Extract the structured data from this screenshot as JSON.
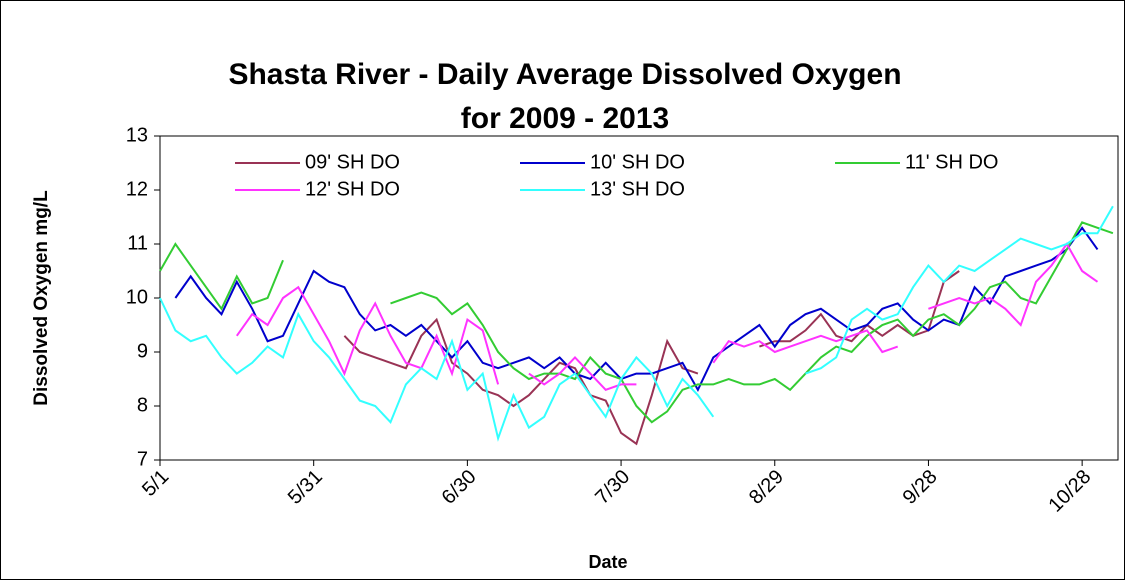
{
  "chart_data": {
    "type": "line",
    "title": [
      "Shasta River - Daily Average Dissolved Oxygen",
      "for 2009 - 2013"
    ],
    "x_label": "Date",
    "y_label": "Dissolved Oxygen mg/L",
    "x": [
      0,
      3,
      6,
      9,
      12,
      15,
      18,
      21,
      24,
      27,
      30,
      33,
      36,
      39,
      42,
      45,
      48,
      51,
      54,
      57,
      60,
      63,
      66,
      69,
      72,
      75,
      78,
      81,
      84,
      87,
      90,
      93,
      96,
      99,
      102,
      105,
      108,
      111,
      114,
      117,
      120,
      123,
      126,
      129,
      132,
      135,
      138,
      141,
      144,
      147,
      150,
      153,
      156,
      159,
      162,
      165,
      168,
      171,
      174,
      177,
      180,
      183,
      186
    ],
    "xlim": [
      0,
      187
    ],
    "xticks": [
      {
        "value": 0,
        "label": "5/1"
      },
      {
        "value": 30,
        "label": "5/31"
      },
      {
        "value": 60,
        "label": "6/30"
      },
      {
        "value": 90,
        "label": "7/30"
      },
      {
        "value": 120,
        "label": "8/29"
      },
      {
        "value": 150,
        "label": "9/28"
      },
      {
        "value": 180,
        "label": "10/28"
      }
    ],
    "ylim": [
      7,
      13
    ],
    "yticks": [
      7,
      8,
      9,
      10,
      11,
      12,
      13
    ],
    "series": [
      {
        "name": "09' SH DO",
        "color": "#993355",
        "values": [
          null,
          null,
          null,
          null,
          null,
          null,
          null,
          null,
          null,
          null,
          null,
          null,
          9.3,
          9.0,
          8.9,
          8.8,
          8.7,
          9.3,
          9.6,
          8.8,
          8.6,
          8.3,
          8.2,
          8.0,
          8.2,
          8.5,
          8.8,
          8.7,
          8.2,
          8.1,
          7.5,
          7.3,
          8.2,
          9.2,
          8.7,
          8.6,
          null,
          null,
          null,
          9.1,
          9.2,
          9.2,
          9.4,
          9.7,
          9.3,
          9.2,
          9.5,
          9.3,
          9.5,
          9.3,
          9.4,
          10.3,
          10.5,
          null,
          null,
          null,
          null,
          null,
          null,
          null,
          null,
          null,
          null
        ]
      },
      {
        "name": "10' SH DO",
        "color": "#0000cc",
        "values": [
          null,
          10.0,
          10.4,
          10.0,
          9.7,
          10.3,
          9.8,
          9.2,
          9.3,
          9.9,
          10.5,
          10.3,
          10.2,
          9.7,
          9.4,
          9.5,
          9.3,
          9.5,
          9.2,
          8.9,
          9.2,
          8.8,
          8.7,
          8.8,
          8.9,
          8.7,
          8.9,
          8.6,
          8.5,
          8.8,
          8.5,
          8.6,
          8.6,
          8.7,
          8.8,
          8.3,
          8.9,
          9.1,
          9.3,
          9.5,
          9.1,
          9.5,
          9.7,
          9.8,
          9.6,
          9.4,
          9.5,
          9.8,
          9.9,
          9.6,
          9.4,
          9.6,
          9.5,
          10.2,
          9.9,
          10.4,
          10.5,
          10.6,
          10.7,
          10.9,
          11.3,
          10.9,
          null
        ]
      },
      {
        "name": "11' SH DO",
        "color": "#33cc33",
        "values": [
          10.5,
          11.0,
          10.6,
          10.2,
          9.8,
          10.4,
          9.9,
          10.0,
          10.7,
          null,
          null,
          null,
          null,
          null,
          null,
          9.9,
          10.0,
          10.1,
          10.0,
          9.7,
          9.9,
          9.5,
          9.0,
          8.7,
          8.5,
          8.6,
          8.6,
          8.5,
          8.9,
          8.6,
          8.5,
          8.0,
          7.7,
          7.9,
          8.3,
          8.4,
          8.4,
          8.5,
          8.4,
          8.4,
          8.5,
          8.3,
          8.6,
          8.9,
          9.1,
          9.0,
          9.3,
          9.5,
          9.6,
          9.3,
          9.6,
          9.7,
          9.5,
          9.8,
          10.2,
          10.3,
          10.0,
          9.9,
          10.4,
          10.9,
          11.4,
          11.3,
          11.2
        ]
      },
      {
        "name": "12' SH DO",
        "color": "#ff33ff",
        "values": [
          null,
          null,
          null,
          null,
          null,
          9.3,
          9.7,
          9.5,
          10.0,
          10.2,
          9.7,
          9.2,
          8.6,
          9.4,
          9.9,
          9.3,
          8.8,
          8.7,
          9.3,
          8.6,
          9.6,
          9.4,
          8.4,
          null,
          8.6,
          8.4,
          8.6,
          8.9,
          8.6,
          8.3,
          8.4,
          8.4,
          null,
          null,
          null,
          null,
          8.8,
          9.2,
          9.1,
          9.2,
          9.0,
          9.1,
          9.2,
          9.3,
          9.2,
          9.3,
          9.4,
          9.0,
          9.1,
          null,
          9.8,
          9.9,
          10.0,
          9.9,
          10.0,
          9.8,
          9.5,
          10.3,
          10.6,
          11.0,
          10.5,
          10.3,
          null
        ]
      },
      {
        "name": "13' SH DO",
        "color": "#33ffff",
        "values": [
          10.0,
          9.4,
          9.2,
          9.3,
          8.9,
          8.6,
          8.8,
          9.1,
          8.9,
          9.7,
          9.2,
          8.9,
          8.5,
          8.1,
          8.0,
          7.7,
          8.4,
          8.7,
          8.5,
          9.2,
          8.3,
          8.6,
          7.4,
          8.2,
          7.6,
          7.8,
          8.4,
          8.6,
          8.2,
          7.8,
          8.5,
          8.9,
          8.6,
          8.0,
          8.5,
          8.2,
          7.8,
          null,
          null,
          null,
          null,
          null,
          8.6,
          8.7,
          8.9,
          9.6,
          9.8,
          9.6,
          9.7,
          10.2,
          10.6,
          10.3,
          10.6,
          10.5,
          10.7,
          10.9,
          11.1,
          11.0,
          10.9,
          11.0,
          11.2,
          11.2,
          11.7
        ]
      }
    ]
  }
}
